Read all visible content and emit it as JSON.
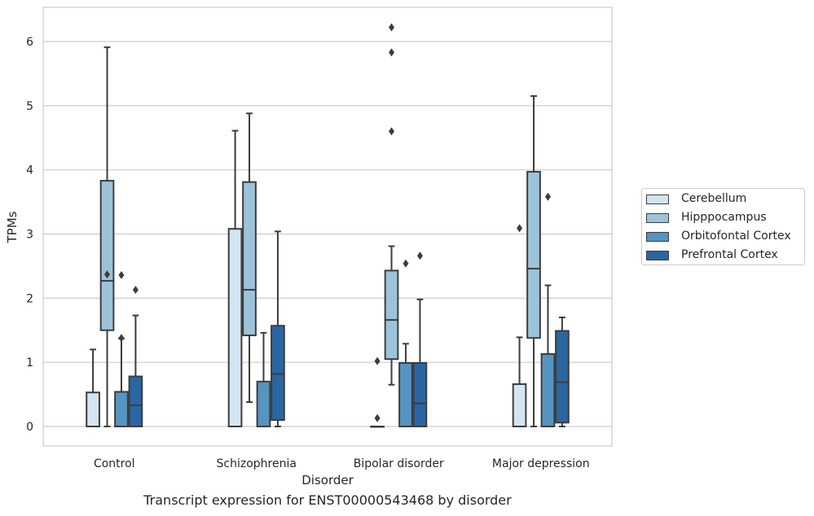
{
  "chart_data": {
    "type": "box",
    "title": "Transcript expression for ENST00000543468 by disorder",
    "xlabel": "Disorder",
    "ylabel": "TPMs",
    "ylim": [
      -0.3,
      6.55
    ],
    "yticks": [
      0,
      1,
      2,
      3,
      4,
      5,
      6
    ],
    "grid": "horizontal",
    "legend_position": "right",
    "categories": [
      "Control",
      "Schizophrenia",
      "Bipolar disorder",
      "Major depression"
    ],
    "series": [
      {
        "name": "Cerebellum",
        "color": "#d5e4f1",
        "boxes": [
          {
            "q1": 0,
            "median": 0,
            "q3": 0.53,
            "whisker_low": 0,
            "whisker_high": 1.2,
            "outliers": []
          },
          {
            "q1": 0,
            "median": 0,
            "q3": 3.08,
            "whisker_low": 0,
            "whisker_high": 4.61,
            "outliers": []
          },
          {
            "q1": 0,
            "median": 0,
            "q3": 0,
            "whisker_low": 0,
            "whisker_high": 0,
            "outliers": [
              0.13,
              1.02
            ]
          },
          {
            "q1": 0,
            "median": 0,
            "q3": 0.66,
            "whisker_low": 0,
            "whisker_high": 1.39,
            "outliers": [
              3.09
            ]
          }
        ]
      },
      {
        "name": "Hipppocampus",
        "color": "#9cc3da",
        "boxes": [
          {
            "q1": 1.5,
            "median": 2.27,
            "q3": 3.83,
            "whisker_low": 0,
            "whisker_high": 5.91,
            "outliers": [
              2.37
            ]
          },
          {
            "q1": 1.42,
            "median": 2.13,
            "q3": 3.81,
            "whisker_low": 0.38,
            "whisker_high": 4.88,
            "outliers": []
          },
          {
            "q1": 1.05,
            "median": 1.66,
            "q3": 2.43,
            "whisker_low": 0.65,
            "whisker_high": 2.81,
            "outliers": [
              4.6,
              5.83,
              6.22
            ]
          },
          {
            "q1": 1.38,
            "median": 2.46,
            "q3": 3.97,
            "whisker_low": 0,
            "whisker_high": 5.15,
            "outliers": []
          }
        ]
      },
      {
        "name": "Orbitofontal Cortex",
        "color": "#5694c2",
        "boxes": [
          {
            "q1": 0,
            "median": 0,
            "q3": 0.54,
            "whisker_low": 0,
            "whisker_high": 1.37,
            "outliers": [
              1.38,
              2.36
            ]
          },
          {
            "q1": 0,
            "median": 0,
            "q3": 0.7,
            "whisker_low": 0,
            "whisker_high": 1.46,
            "outliers": []
          },
          {
            "q1": 0,
            "median": 0,
            "q3": 0.99,
            "whisker_low": 0,
            "whisker_high": 1.29,
            "outliers": [
              2.54
            ]
          },
          {
            "q1": 0,
            "median": 0,
            "q3": 1.13,
            "whisker_low": 0,
            "whisker_high": 2.2,
            "outliers": [
              3.58
            ]
          }
        ]
      },
      {
        "name": "Prefrontal Cortex",
        "color": "#2a66a2",
        "boxes": [
          {
            "q1": 0,
            "median": 0.33,
            "q3": 0.78,
            "whisker_low": 0,
            "whisker_high": 1.73,
            "outliers": [
              2.13
            ]
          },
          {
            "q1": 0.1,
            "median": 0.82,
            "q3": 1.57,
            "whisker_low": 0,
            "whisker_high": 3.04,
            "outliers": []
          },
          {
            "q1": 0,
            "median": 0.36,
            "q3": 0.99,
            "whisker_low": 0,
            "whisker_high": 1.98,
            "outliers": [
              2.66
            ]
          },
          {
            "q1": 0.06,
            "median": 0.69,
            "q3": 1.49,
            "whisker_low": 0,
            "whisker_high": 1.7,
            "outliers": []
          }
        ]
      }
    ]
  }
}
